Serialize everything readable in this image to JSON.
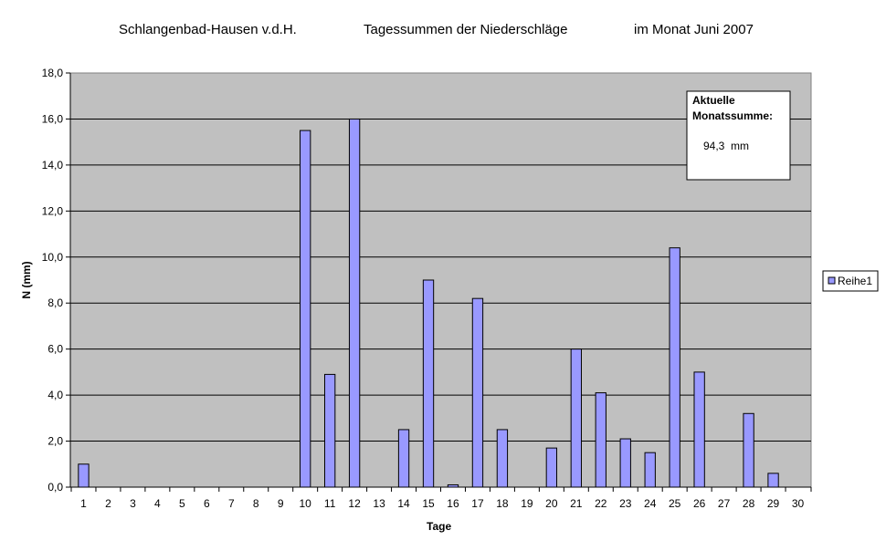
{
  "chart_data": {
    "type": "bar",
    "title": {
      "location": "Schlangenbad-Hausen v.d.H.",
      "subject": "Tagessummen der Niederschläge",
      "period": "im Monat Juni 2007"
    },
    "xlabel": "Tage",
    "ylabel": "N (mm)",
    "ylim": [
      0,
      18
    ],
    "ytick_step": 2,
    "yticks": [
      "0,0",
      "2,0",
      "4,0",
      "6,0",
      "8,0",
      "10,0",
      "12,0",
      "14,0",
      "16,0",
      "18,0"
    ],
    "grid": true,
    "legend_position": "right",
    "categories": [
      "1",
      "2",
      "3",
      "4",
      "5",
      "6",
      "7",
      "8",
      "9",
      "10",
      "11",
      "12",
      "13",
      "14",
      "15",
      "16",
      "17",
      "18",
      "19",
      "20",
      "21",
      "22",
      "23",
      "24",
      "25",
      "26",
      "27",
      "28",
      "29",
      "30"
    ],
    "series": [
      {
        "name": "Reihe1",
        "color": "#9999ff",
        "values": [
          1.0,
          0,
          0,
          0,
          0,
          0,
          0,
          0,
          0,
          15.5,
          4.9,
          16.0,
          0,
          2.5,
          9.0,
          0.1,
          8.2,
          2.5,
          0,
          1.7,
          6.0,
          4.1,
          2.1,
          1.5,
          10.4,
          5.0,
          0,
          3.2,
          0.6,
          0
        ]
      }
    ],
    "annotation": {
      "line1": "Aktuelle",
      "line2": "Monatssumme:",
      "value": "94,3  mm"
    },
    "colors": {
      "plot_background": "#c0c0c0",
      "bar_fill": "#9999ff",
      "gridline": "#000000"
    }
  }
}
